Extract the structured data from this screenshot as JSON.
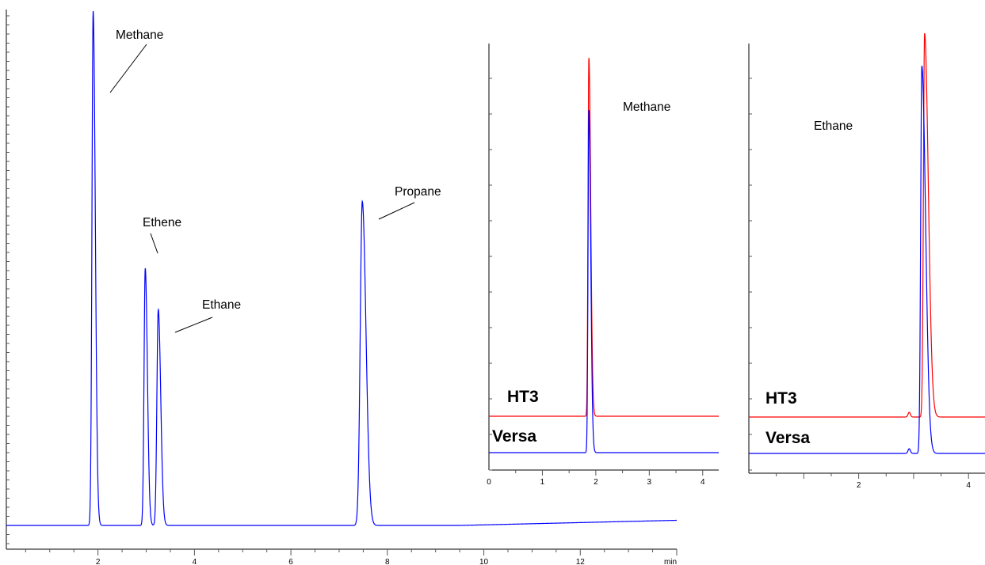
{
  "chart_data": [
    {
      "type": "line",
      "id": "main",
      "title": "",
      "xlabel": "",
      "ylabel": "",
      "x_unit": "min",
      "xlim": [
        0.1,
        14.0
      ],
      "ylim": [
        -0.05,
        1.0
      ],
      "x_ticks": [
        2,
        4,
        6,
        8,
        10,
        12
      ],
      "grid": false,
      "series": [
        {
          "color": "#0000ff",
          "baseline": 0.0,
          "baseline_end": 0.01,
          "peaks": [
            {
              "label": "Methane",
              "rt": 1.9,
              "height": 1.0,
              "width": 0.035
            },
            {
              "label": "Ethene",
              "rt": 2.98,
              "height": 0.5,
              "width": 0.035
            },
            {
              "label": "Ethane",
              "rt": 3.25,
              "height": 0.42,
              "width": 0.04
            },
            {
              "label": "Propane",
              "rt": 7.48,
              "height": 0.63,
              "width": 0.06
            }
          ]
        }
      ],
      "annotations": [
        {
          "text": "Methane",
          "x": 1.92,
          "y": 0.82
        },
        {
          "text": "Ethene",
          "x": 2.98,
          "y": 0.5
        },
        {
          "text": "Ethane",
          "x": 3.3,
          "y": 0.37
        },
        {
          "text": "Propane",
          "x": 7.5,
          "y": 0.59
        }
      ]
    },
    {
      "type": "line",
      "id": "inset-methane",
      "title": "Methane",
      "xlabel": "",
      "ylabel": "",
      "xlim": [
        0,
        4.3
      ],
      "ylim": [
        -0.05,
        1.12
      ],
      "x_ticks": [
        0,
        1,
        2,
        3,
        4
      ],
      "grid": false,
      "series": [
        {
          "name": "HT3",
          "color": "#ff0000",
          "offset": 0.1,
          "peak_rt": 1.87,
          "peak_height": 0.92
        },
        {
          "name": "Versa",
          "color": "#0000ff",
          "offset": 0.0,
          "peak_rt": 1.87,
          "peak_height": 0.88
        }
      ]
    },
    {
      "type": "line",
      "id": "inset-ethane",
      "title": "Ethane",
      "xlabel": "",
      "ylabel": "",
      "xlim": [
        0,
        4.3
      ],
      "ylim": [
        -0.05,
        1.12
      ],
      "x_ticks": [
        2,
        4
      ],
      "grid": false,
      "series": [
        {
          "name": "HT3",
          "color": "#ff0000",
          "offset": 0.1,
          "peak_rt": 3.2,
          "peak_height": 0.97
        },
        {
          "name": "Versa",
          "color": "#0000ff",
          "offset": 0.0,
          "peak_rt": 3.15,
          "peak_height": 0.98
        }
      ]
    }
  ],
  "labels": {
    "main_unit": "min",
    "inset1_title": "Methane",
    "inset2_title": "Ethane",
    "ht3": "HT3",
    "versa": "Versa"
  }
}
